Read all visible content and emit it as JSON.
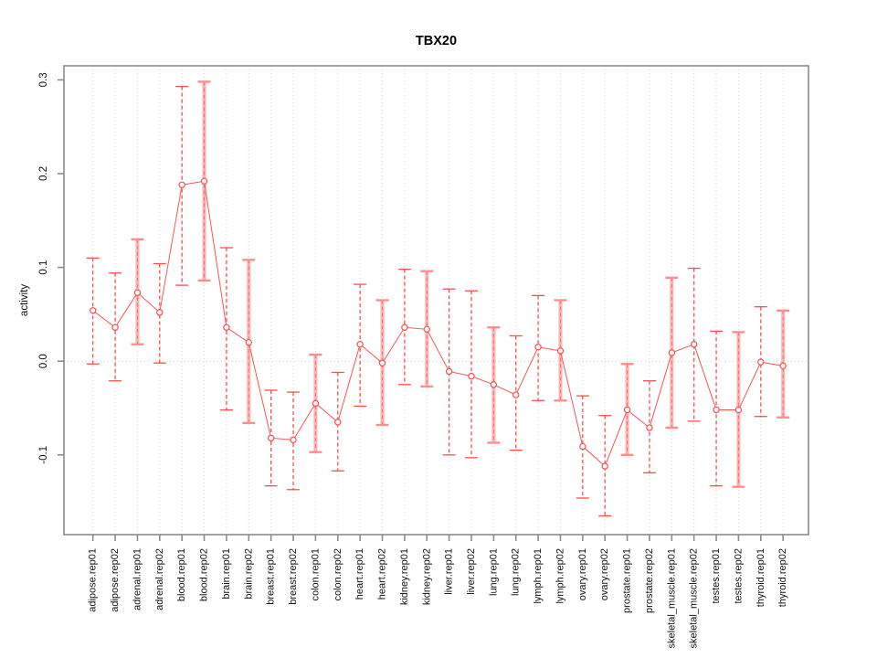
{
  "page": {
    "background": "#ffffff"
  },
  "chart_data": {
    "type": "scatter",
    "subtype": "point-errorbar",
    "title": "TBX20",
    "xlabel": "",
    "ylabel": "activity",
    "ylim": [
      -0.185,
      0.315
    ],
    "yticks": [
      -0.1,
      0.0,
      0.1,
      0.2,
      0.3
    ],
    "grid": "vertical dotted gridline at every category; dotted horizontal line at y=0",
    "legend_position": "none",
    "marker": "open-circle",
    "line": "connected",
    "categories": [
      "adipose.rep01",
      "adipose.rep02",
      "adrenal.rep01",
      "adrenal.rep02",
      "blood.rep01",
      "blood.rep02",
      "brain.rep01",
      "brain.rep02",
      "breast.rep01",
      "breast.rep02",
      "colon.rep01",
      "colon.rep02",
      "heart.rep01",
      "heart.rep02",
      "kidney.rep01",
      "kidney.rep02",
      "liver.rep01",
      "liver.rep02",
      "lung.rep01",
      "lung.rep02",
      "lymph.rep01",
      "lymph.rep02",
      "ovary.rep01",
      "ovary.rep02",
      "prostate.rep01",
      "prostate.rep02",
      "skeletal_muscle.rep01",
      "skeletal_muscle.rep02",
      "testes.rep01",
      "testes.rep02",
      "thyroid.rep01",
      "thyroid.rep02"
    ],
    "series": [
      {
        "name": "activity",
        "means": [
          0.054,
          0.036,
          0.073,
          0.052,
          0.188,
          0.192,
          0.036,
          0.02,
          -0.082,
          -0.084,
          -0.045,
          -0.065,
          0.018,
          -0.002,
          0.036,
          0.034,
          -0.011,
          -0.016,
          -0.025,
          -0.036,
          0.015,
          0.011,
          -0.091,
          -0.112,
          -0.052,
          -0.071,
          0.009,
          0.018,
          -0.052,
          -0.052,
          -0.001,
          -0.005
        ],
        "lower": [
          -0.003,
          -0.021,
          0.018,
          -0.002,
          0.081,
          0.086,
          -0.052,
          -0.066,
          -0.133,
          -0.137,
          -0.097,
          -0.117,
          -0.048,
          -0.068,
          -0.025,
          -0.027,
          -0.1,
          -0.103,
          -0.087,
          -0.095,
          -0.042,
          -0.042,
          -0.146,
          -0.165,
          -0.1,
          -0.119,
          -0.071,
          -0.064,
          -0.133,
          -0.134,
          -0.059,
          -0.06
        ],
        "upper": [
          0.11,
          0.094,
          0.13,
          0.104,
          0.293,
          0.298,
          0.121,
          0.108,
          -0.031,
          -0.033,
          0.007,
          -0.012,
          0.082,
          0.065,
          0.098,
          0.096,
          0.077,
          0.075,
          0.036,
          0.027,
          0.07,
          0.065,
          -0.037,
          -0.058,
          -0.003,
          -0.021,
          0.089,
          0.099,
          0.032,
          0.031,
          0.058,
          0.054
        ],
        "bar_styles": [
          "dashed",
          "dashed",
          "thick",
          "dashed",
          "dashed",
          "thick",
          "dashed",
          "thick",
          "dashed",
          "dashed",
          "thick",
          "dashed",
          "dashed",
          "thick",
          "dashed",
          "thick",
          "dashed",
          "dashed",
          "thick",
          "dashed",
          "dashed",
          "thick",
          "dashed",
          "dashed",
          "thick",
          "dashed",
          "thick",
          "dashed",
          "dashed",
          "thick",
          "dashed",
          "thick"
        ]
      }
    ],
    "colors": {
      "point_stroke": "#ff4d4d",
      "connect_line": "#ff5252",
      "dashed_bar": "#ff4d4d",
      "thick_bar": "#ffb3b3",
      "thick_bar_core": "#ff6b6b",
      "thick_bar_cap": "#ff8f8f",
      "grid": "#d6d6d6",
      "zero_line": "#cfcfcf",
      "frame": "#8c8c8c",
      "text": "#111111",
      "title": "#000000"
    }
  }
}
